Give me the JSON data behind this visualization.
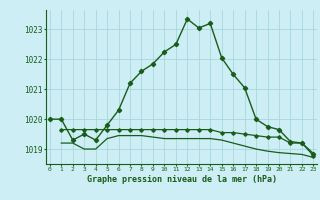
{
  "title": "Graphe pression niveau de la mer (hPa)",
  "bg_color": "#cceef4",
  "grid_color": "#a8d8dc",
  "line_color": "#1a5c1a",
  "xlim": [
    -0.3,
    23.3
  ],
  "ylim": [
    1018.5,
    1023.65
  ],
  "yticks": [
    1019,
    1020,
    1021,
    1022,
    1023
  ],
  "xticks": [
    0,
    1,
    2,
    3,
    4,
    5,
    6,
    7,
    8,
    9,
    10,
    11,
    12,
    13,
    14,
    15,
    16,
    17,
    18,
    19,
    20,
    21,
    22,
    23
  ],
  "line1_x": [
    0,
    1,
    2,
    3,
    4,
    5,
    6,
    7,
    8,
    9,
    10,
    11,
    12,
    13,
    14,
    15,
    16,
    17,
    18,
    19,
    20,
    21,
    22,
    23
  ],
  "line1_y": [
    1020.0,
    1020.0,
    1019.3,
    1019.5,
    1019.3,
    1019.8,
    1020.3,
    1021.2,
    1021.6,
    1021.85,
    1022.25,
    1022.5,
    1023.35,
    1023.05,
    1023.2,
    1022.05,
    1021.5,
    1021.05,
    1020.0,
    1019.75,
    1019.65,
    1019.25,
    1019.2,
    1018.85
  ],
  "line2_x": [
    1,
    2,
    3,
    4,
    5,
    6,
    7,
    8,
    9,
    10,
    11,
    12,
    13,
    14,
    15,
    16,
    17,
    18,
    19,
    20,
    21,
    22,
    23
  ],
  "line2_y": [
    1019.65,
    1019.65,
    1019.65,
    1019.65,
    1019.65,
    1019.65,
    1019.65,
    1019.65,
    1019.65,
    1019.65,
    1019.65,
    1019.65,
    1019.65,
    1019.65,
    1019.55,
    1019.55,
    1019.5,
    1019.45,
    1019.4,
    1019.4,
    1019.2,
    1019.2,
    1018.78
  ],
  "line3_x": [
    1,
    2,
    3,
    4,
    5,
    6,
    7,
    8,
    9,
    10,
    11,
    12,
    13,
    14,
    15,
    16,
    17,
    18,
    19,
    20,
    21,
    22,
    23
  ],
  "line3_y": [
    1019.2,
    1019.2,
    1019.0,
    1019.0,
    1019.35,
    1019.45,
    1019.45,
    1019.45,
    1019.4,
    1019.35,
    1019.35,
    1019.35,
    1019.35,
    1019.35,
    1019.3,
    1019.2,
    1019.1,
    1019.0,
    1018.93,
    1018.88,
    1018.85,
    1018.82,
    1018.72
  ]
}
